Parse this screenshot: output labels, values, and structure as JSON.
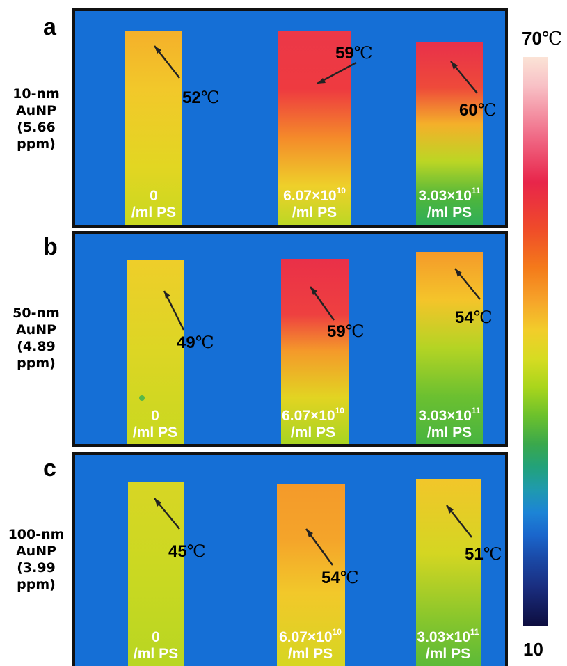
{
  "panels": [
    {
      "letter": "a",
      "label_lines": [
        "10-nm",
        "AuNP",
        "(5.66",
        "ppm)"
      ],
      "strips": [
        {
          "conc_base": "0",
          "conc_exp": "",
          "conc_unit": "/ml PS",
          "temp_value": "52",
          "temp_unit": "℃"
        },
        {
          "conc_base": "6.07×10",
          "conc_exp": "10",
          "conc_unit": "/ml PS",
          "temp_value": "59",
          "temp_unit": "℃"
        },
        {
          "conc_base": "3.03×10",
          "conc_exp": "11",
          "conc_unit": "/ml PS",
          "temp_value": "60",
          "temp_unit": "℃"
        }
      ]
    },
    {
      "letter": "b",
      "label_lines": [
        "50-nm",
        "AuNP",
        "(4.89",
        "ppm)"
      ],
      "strips": [
        {
          "conc_base": "0",
          "conc_exp": "",
          "conc_unit": "/ml PS",
          "temp_value": "49",
          "temp_unit": "℃"
        },
        {
          "conc_base": "6.07×10",
          "conc_exp": "10",
          "conc_unit": "/ml PS",
          "temp_value": "59",
          "temp_unit": "℃"
        },
        {
          "conc_base": "3.03×10",
          "conc_exp": "11",
          "conc_unit": "/ml PS",
          "temp_value": "54",
          "temp_unit": "℃"
        }
      ]
    },
    {
      "letter": "c",
      "label_lines": [
        "100-nm",
        "AuNP",
        "(3.99",
        "ppm)"
      ],
      "strips": [
        {
          "conc_base": "0",
          "conc_exp": "",
          "conc_unit": "/ml PS",
          "temp_value": "45",
          "temp_unit": "℃"
        },
        {
          "conc_base": "6.07×10",
          "conc_exp": "10",
          "conc_unit": "/ml PS",
          "temp_value": "54",
          "temp_unit": "℃"
        },
        {
          "conc_base": "3.03×10",
          "conc_exp": "11",
          "conc_unit": "/ml PS",
          "temp_value": "51",
          "temp_unit": "℃"
        }
      ]
    }
  ],
  "colorbar": {
    "max_value": "70",
    "max_unit": "℃",
    "min_value": "10"
  },
  "colors": {
    "background_blue": "#156fd6",
    "frame": "#111111",
    "arrow": "#222222"
  }
}
